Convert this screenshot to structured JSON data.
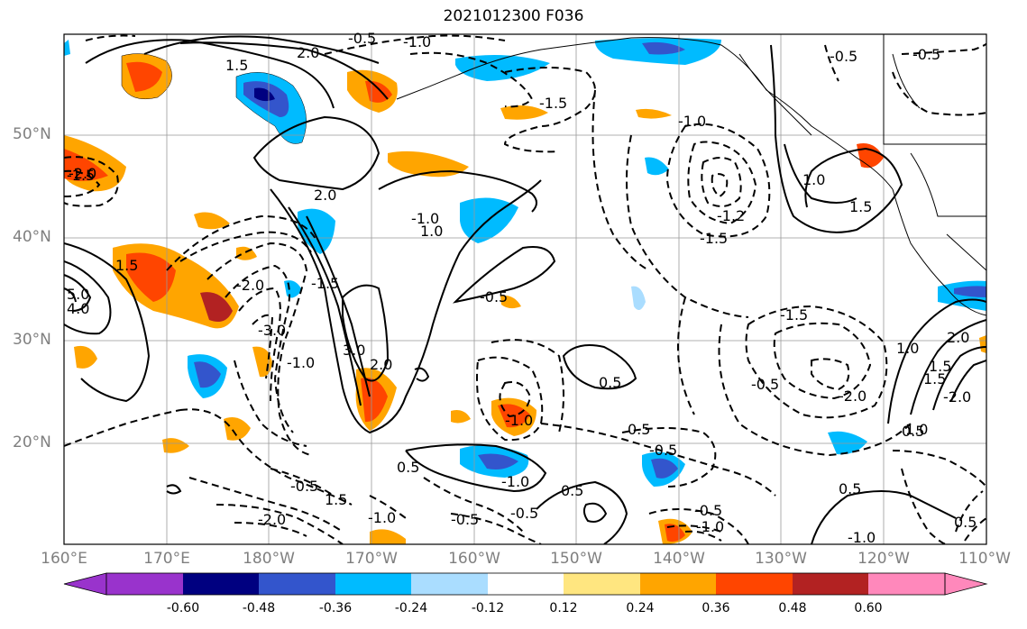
{
  "title": "2021012300 F036",
  "map": {
    "lat_labels": [
      "50°N",
      "40°N",
      "30°N",
      "20°N"
    ],
    "lon_labels": [
      "160°E",
      "170°E",
      "180°W",
      "170°W",
      "160°W",
      "150°W",
      "140°W",
      "130°W",
      "120°W",
      "110°W"
    ],
    "contour_labels": [
      "0.5",
      "-0.5",
      "1.0",
      "-1.0",
      "1.5",
      "-1.5",
      "2.0",
      "-2.0",
      "3.0",
      "-3.0",
      "5.0",
      "4.0"
    ],
    "contour_label_text": {
      "a": "-0.5",
      "b": "-1.0",
      "c": "2.0",
      "d": "1.5",
      "e": "-1.5",
      "f": "-0.5",
      "g": "-1.0",
      "h": "-1.2",
      "i": "-1.5",
      "j": "1.0",
      "k": "1.5",
      "l": "-2.0",
      "m": "-2.0",
      "n": "-1.5",
      "o": "-1.0",
      "p": "-3.0",
      "q": "3.0",
      "r": "2.0",
      "s": "2.0",
      "t": "1.0",
      "u": "-0.5",
      "v": "0.5",
      "w": "-1.0",
      "x": "0.5",
      "y": "-0.5",
      "z": "-1.5",
      "aa": "-2.0",
      "ab": "-2.0",
      "ac": "1.5",
      "ad": "-1.0",
      "ae": "0.5",
      "af": "-0.5",
      "ag": "-0.5",
      "ah": "-1.0",
      "ai": "-0.5",
      "aj": "-1.0",
      "ak": "0.5",
      "al": "0.5",
      "am": "-0.5",
      "an": "-1.0",
      "ao": "1.0",
      "ap": "1.5",
      "aq": "-2.0",
      "ar": "1.5",
      "as": "5.0",
      "at": "4.0",
      "au": "-1.5",
      "av": "-0.5",
      "aw": "0.5",
      "ax": "1.0",
      "ay": "2.0",
      "az": "0.5",
      "ba": "-0.5",
      "bb": "1.5",
      "bc": "-1.0"
    },
    "colors": {
      "neg_060": "#9933cc",
      "neg_048": "#000080",
      "neg_036": "#3355cc",
      "neg_024": "#00bbff",
      "neg_012": "#aaddff",
      "neutral": "#ffffff",
      "pos_012": "#ffe680",
      "pos_024": "#ffa500",
      "pos_036": "#ff4500",
      "pos_048": "#b22222",
      "pos_060": "#ff88bb"
    }
  },
  "colorbar": {
    "tick_labels": [
      "-0.60",
      "-0.48",
      "-0.36",
      "-0.24",
      "-0.12",
      "0.12",
      "0.24",
      "0.36",
      "0.48",
      "0.60"
    ],
    "colors": [
      "#9933cc",
      "#000080",
      "#3355cc",
      "#00bbff",
      "#aaddff",
      "#ffffff",
      "#ffe680",
      "#ffa500",
      "#ff4500",
      "#b22222",
      "#ff88bb"
    ]
  }
}
